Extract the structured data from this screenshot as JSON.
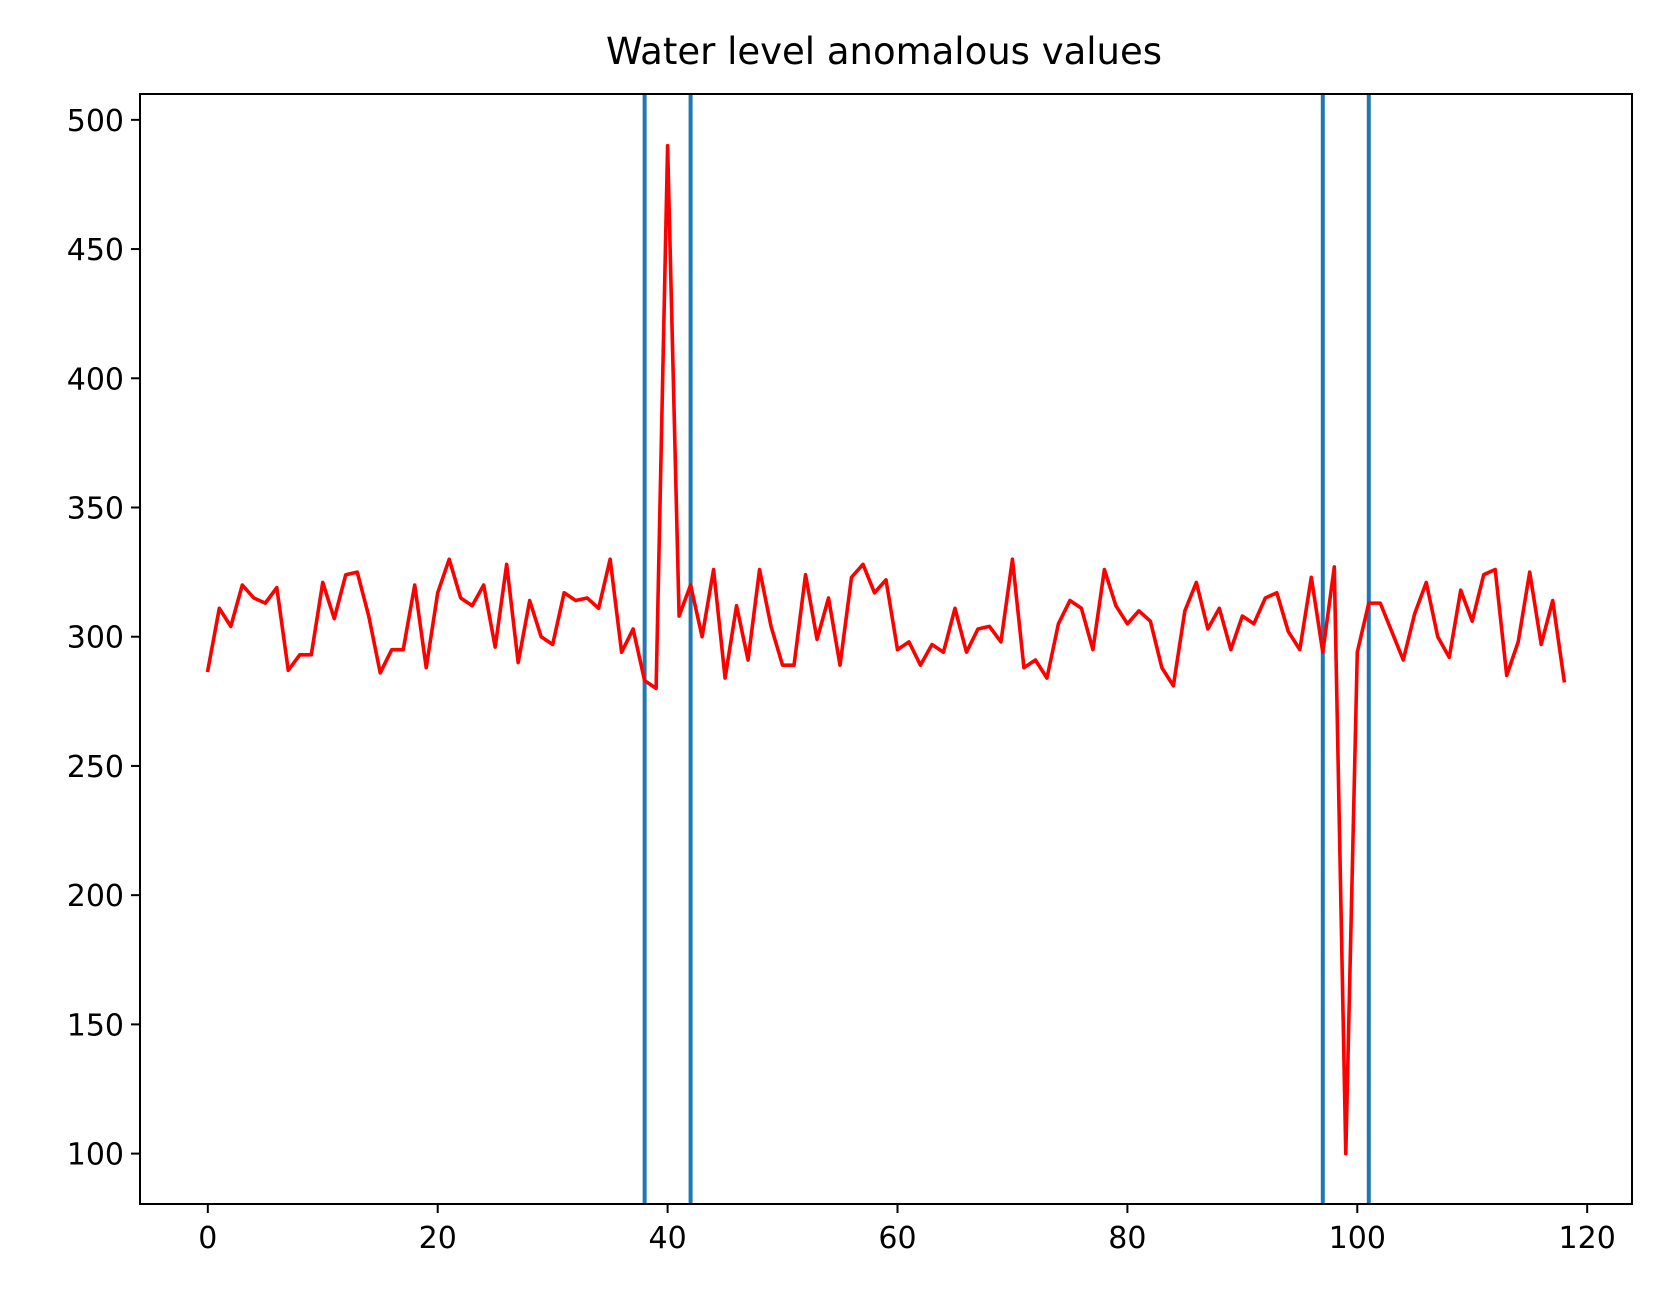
{
  "chart_data": {
    "type": "line",
    "title": "Water level anomalous values",
    "xlabel": "",
    "ylabel": "",
    "xlim": [
      -5.9,
      123.9
    ],
    "ylim": [
      80.5,
      510
    ],
    "xticks": [
      0,
      20,
      40,
      60,
      80,
      100,
      120
    ],
    "yticks": [
      100,
      150,
      200,
      250,
      300,
      350,
      400,
      450,
      500
    ],
    "grid": false,
    "legend": "none",
    "series": [
      {
        "color": "#ff0000",
        "x_start": 0,
        "x_step": 1,
        "values": [
          287,
          311,
          304,
          320,
          315,
          313,
          319,
          287,
          293,
          293,
          321,
          307,
          324,
          325,
          308,
          286,
          295,
          295,
          320,
          288,
          317,
          330,
          315,
          312,
          320,
          296,
          328,
          290,
          314,
          300,
          297,
          317,
          314,
          315,
          311,
          330,
          294,
          303,
          283,
          280,
          490,
          308,
          320,
          300,
          326,
          284,
          312,
          291,
          326,
          304,
          289,
          289,
          324,
          299,
          315,
          289,
          323,
          328,
          317,
          322,
          295,
          298,
          289,
          297,
          294,
          311,
          294,
          303,
          304,
          298,
          330,
          288,
          291,
          284,
          305,
          314,
          311,
          295,
          326,
          312,
          305,
          310,
          306,
          288,
          281,
          310,
          321,
          303,
          311,
          295,
          308,
          305,
          315,
          317,
          302,
          295,
          323,
          294,
          327,
          100,
          294,
          313,
          313,
          302,
          291,
          309,
          321,
          300,
          292,
          318,
          306,
          324,
          326,
          285,
          298,
          325,
          297,
          314,
          283
        ]
      }
    ],
    "vlines": {
      "color": "#1f77b4",
      "x": [
        38,
        42,
        97,
        101
      ]
    }
  }
}
